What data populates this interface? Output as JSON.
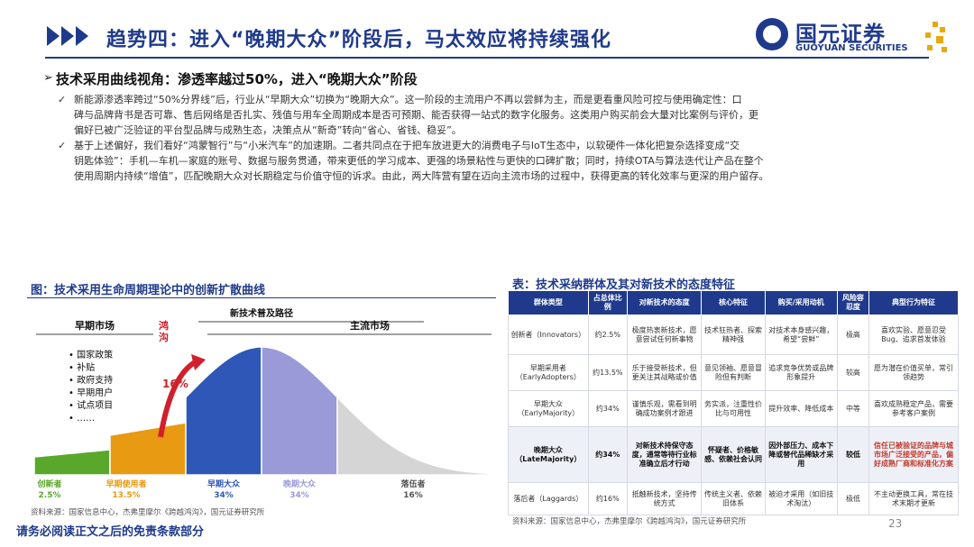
{
  "header": {
    "title": "趋势四：进入“晚期大众”阶段后，马太效应将持续强化",
    "logo_cn": "国元证券",
    "logo_en": "GUOYUAN SECURITIES"
  },
  "section": {
    "heading": "技术采用曲线视角：渗透率越过50%，进入“晚期大众”阶段",
    "bullets": [
      {
        "lines": [
          "新能源渗透率跨过“50%分界线”后，行业从“早期大众”切换为“晚期大众”。这一阶段的主流用户不再以尝鲜为主，而是更看重风险可控与使用确定性：口",
          "碑与品牌背书是否可靠、售后网络是否扎实、残值与用车全周期成本是否可预期、能否获得一站式的数字化服务。这类用户购买前会大量对比案例与评价，更",
          "偏好已被广泛验证的平台型品牌与成熟生态，决策点从“新奇”转向“省心、省钱、稳妥”。"
        ]
      },
      {
        "lines": [
          "基于上述偏好，我们看好“鸿蒙智行”与“小米汽车”的加速期。二者共同点在于把车放进更大的消费电子与IoT生态中，以软硬件一体化把复杂选择变成“交",
          "钥匙体验”：手机—车机—家庭的账号、数据与服务贯通，带来更低的学习成本、更强的场景粘性与更快的口碑扩散；同时，持续OTA与算法迭代让产品在整个",
          "使用周期内持续“增值”，匹配晚期大众对长期稳定与价值守恒的诉求。由此，两大阵营有望在迈向主流市场的过程中，获得更高的转化效率与更深的用户留存。"
        ]
      }
    ]
  },
  "figure": {
    "title": "图：技术采用生命周期理论中的创新扩散曲线",
    "top_label": "新技术普及路径",
    "early_market": "早期市场",
    "chasm": "鸿沟",
    "main_market": "主流市场",
    "chasm_pct": "16%",
    "factors": [
      "国家政策",
      "补贴",
      "政府支持",
      "早期用户",
      "试点项目",
      "……"
    ],
    "source": "资料来源：国家信息中心，杰弗里摩尔《跨越鸿沟》，国元证券研究所"
  },
  "chart_data": {
    "type": "area",
    "categories": [
      "创新者",
      "早期使用者",
      "早期大众",
      "晚期大众",
      "落伍者"
    ],
    "values": [
      2.5,
      13.5,
      34,
      34,
      16
    ],
    "value_labels": [
      "2.5%",
      "13.5%",
      "34%",
      "34%",
      "16%"
    ],
    "colors": [
      "#5aa82b",
      "#e89a12",
      "#2f57b8",
      "#9a9ad8",
      "#d5d5d5"
    ]
  },
  "table": {
    "title": "表：技术采纳群体及其对新技术的态度特征",
    "headers": [
      "群体类型",
      "占总体比例",
      "对新技术的态度",
      "核心特征",
      "购买/采用动机",
      "风险容忍度",
      "典型行为特征"
    ],
    "rows": [
      [
        "创新者（Innovators）",
        "约2.5%",
        "极度热衷新技术，愿意尝试任何新事物",
        "技术狂热者、探索精神强",
        "对技术本身感兴趣，希望“尝鲜”",
        "极高",
        "喜欢实验、愿意忍受Bug、追求首发体验"
      ],
      [
        "早期采用者（EarlyAdopters）",
        "约13.5%",
        "乐于接受新技术，但更关注其战略或价值",
        "意见领袖、愿意冒险但有判断",
        "追求竞争优势或品牌形象提升",
        "较高",
        "愿为潜在价值买单，常引领趋势"
      ],
      [
        "早期大众（EarlyMajority）",
        "约34%",
        "谨慎乐观，需看到明确成功案例才跟进",
        "务实派，注重性价比与可用性",
        "提升效率、降低成本",
        "中等",
        "喜欢成熟稳定产品，需要参考客户案例"
      ],
      [
        "晚期大众（LateMajority）",
        "约34%",
        "对新技术持保守态度，通常等待行业标准确立后才行动",
        "怀疑者、价格敏感、依赖社会认同",
        "因外部压力、成本下降或替代品稀缺才采用",
        "较低",
        "信任已被验证的品牌与城市场广泛接受的产品，偏好成熟厂商和标准化方案"
      ],
      [
        "落后者（Laggards）",
        "约16%",
        "抵触新技术，坚持传统方式",
        "传统主义者、依赖旧体系",
        "被迫才采用（如旧技术淘汰）",
        "极低",
        "不主动更换工具，常在技术末期才更新"
      ]
    ],
    "source": "资料来源：国家信息中心，杰弗里摩尔《跨越鸿沟》，国元证券研究所"
  },
  "footer": {
    "disclaimer": "请务必阅读正文之后的免责条款部分",
    "page": "23"
  }
}
